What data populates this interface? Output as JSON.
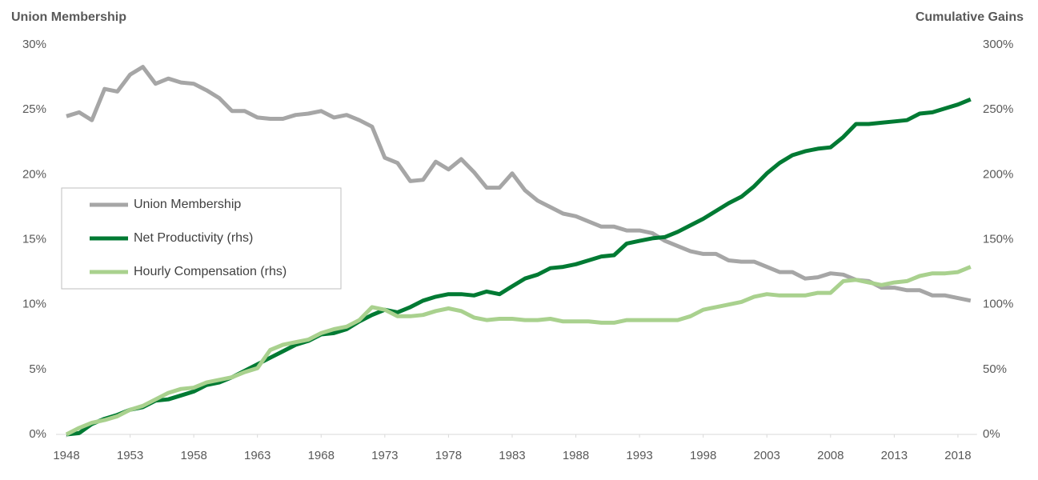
{
  "chart_data": {
    "type": "line",
    "y_title": "Union Membership",
    "y2_title": "Cumulative Gains",
    "x": [
      1948,
      1949,
      1950,
      1951,
      1952,
      1953,
      1954,
      1955,
      1956,
      1957,
      1958,
      1959,
      1960,
      1961,
      1962,
      1963,
      1964,
      1965,
      1966,
      1967,
      1968,
      1969,
      1970,
      1971,
      1972,
      1973,
      1974,
      1975,
      1976,
      1977,
      1978,
      1979,
      1980,
      1981,
      1982,
      1983,
      1984,
      1985,
      1986,
      1987,
      1988,
      1989,
      1990,
      1991,
      1992,
      1993,
      1994,
      1995,
      1996,
      1997,
      1998,
      1999,
      2000,
      2001,
      2002,
      2003,
      2004,
      2005,
      2006,
      2007,
      2008,
      2009,
      2010,
      2011,
      2012,
      2013,
      2014,
      2015,
      2016,
      2017,
      2018,
      2019
    ],
    "xlim": [
      1948,
      2019.5
    ],
    "xticks": [
      1948,
      1953,
      1958,
      1963,
      1968,
      1973,
      1978,
      1983,
      1988,
      1993,
      1998,
      2003,
      2008,
      2013,
      2018
    ],
    "ylim": [
      0,
      30
    ],
    "yticks": [
      {
        "value": 0,
        "label": "0%"
      },
      {
        "value": 5,
        "label": "5%"
      },
      {
        "value": 10,
        "label": "10%"
      },
      {
        "value": 15,
        "label": "15%"
      },
      {
        "value": 20,
        "label": "20%"
      },
      {
        "value": 25,
        "label": "25%"
      },
      {
        "value": 30,
        "label": "30%"
      }
    ],
    "y2lim": [
      0,
      300
    ],
    "y2ticks": [
      {
        "value": 0,
        "label": "0%"
      },
      {
        "value": 50,
        "label": "50%"
      },
      {
        "value": 100,
        "label": "100%"
      },
      {
        "value": 150,
        "label": "150%"
      },
      {
        "value": 200,
        "label": "200%"
      },
      {
        "value": 250,
        "label": "250%"
      },
      {
        "value": 300,
        "label": "300%"
      }
    ],
    "grid": false,
    "legend": "left",
    "series": [
      {
        "name": "Union Membership",
        "color": "#a6a6a6",
        "axis": "y",
        "values": [
          24.5,
          24.8,
          24.2,
          26.6,
          26.4,
          27.7,
          28.3,
          27.0,
          27.4,
          27.1,
          27.0,
          26.5,
          25.9,
          24.9,
          24.9,
          24.4,
          24.3,
          24.3,
          24.6,
          24.7,
          24.9,
          24.4,
          24.6,
          24.2,
          23.7,
          21.3,
          20.9,
          19.5,
          19.6,
          21.0,
          20.4,
          21.2,
          20.2,
          19.0,
          19.0,
          20.1,
          18.8,
          18.0,
          17.5,
          17.0,
          16.8,
          16.4,
          16.0,
          16.0,
          15.7,
          15.7,
          15.5,
          14.9,
          14.5,
          14.1,
          13.9,
          13.9,
          13.4,
          13.3,
          13.3,
          12.9,
          12.5,
          12.5,
          12.0,
          12.1,
          12.4,
          12.3,
          11.9,
          11.8,
          11.3,
          11.3,
          11.1,
          11.1,
          10.7,
          10.7,
          10.5,
          10.3
        ]
      },
      {
        "name": "Net Productivity (rhs)",
        "color": "#007a33",
        "axis": "y2",
        "values": [
          0,
          1,
          8,
          12,
          15,
          19,
          21,
          26,
          27,
          30,
          33,
          38,
          40,
          44,
          49,
          54,
          59,
          64,
          69,
          72,
          77,
          78,
          81,
          87,
          92,
          96,
          94,
          98,
          103,
          106,
          108,
          108,
          107,
          110,
          108,
          114,
          120,
          123,
          128,
          129,
          131,
          134,
          137,
          138,
          147,
          149,
          151,
          152,
          156,
          161,
          166,
          172,
          178,
          183,
          191,
          201,
          209,
          215,
          218,
          220,
          221,
          229,
          239,
          239,
          240,
          241,
          242,
          247,
          248,
          251,
          254,
          258
        ]
      },
      {
        "name": "Hourly Compensation (rhs)",
        "color": "#a9d18e",
        "axis": "y2",
        "values": [
          0,
          5,
          9,
          11,
          14,
          19,
          22,
          27,
          32,
          35,
          36,
          40,
          42,
          44,
          48,
          51,
          65,
          69,
          71,
          73,
          78,
          81,
          83,
          88,
          98,
          96,
          91,
          91,
          92,
          95,
          97,
          95,
          90,
          88,
          89,
          89,
          88,
          88,
          89,
          87,
          87,
          87,
          86,
          86,
          88,
          88,
          88,
          88,
          88,
          91,
          96,
          98,
          100,
          102,
          106,
          108,
          107,
          107,
          107,
          109,
          109,
          118,
          119,
          117,
          115,
          117,
          118,
          122,
          124,
          124,
          125,
          129
        ]
      }
    ]
  }
}
